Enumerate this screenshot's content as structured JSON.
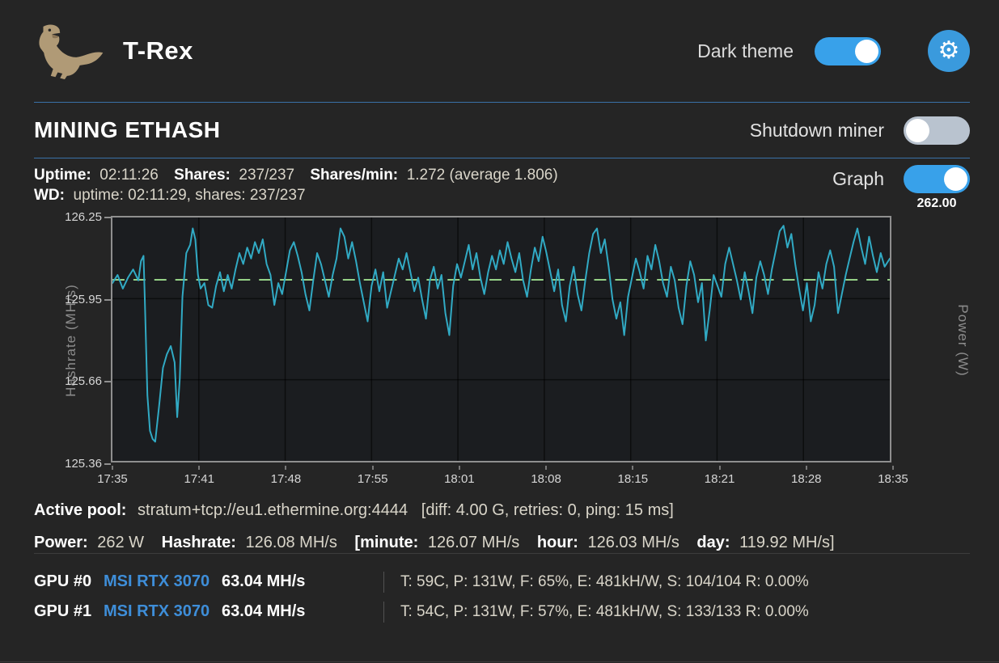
{
  "header": {
    "title": "T-Rex",
    "dark_theme_label": "Dark theme",
    "dark_theme_on": true,
    "gear_glyph": "⚙"
  },
  "section": {
    "title": "MINING ETHASH",
    "shutdown_label": "Shutdown miner",
    "shutdown_on": false,
    "graph_label": "Graph",
    "graph_on": true,
    "graph_tooltip": "262.00"
  },
  "stats": {
    "uptime_label": "Uptime:",
    "uptime": "02:11:26",
    "shares_label": "Shares:",
    "shares": "237/237",
    "shares_min_label": "Shares/min:",
    "shares_min": "1.272 (average 1.806)",
    "wd_label": "WD:",
    "wd": "uptime: 02:11:29, shares: 237/237"
  },
  "pool": {
    "label": "Active pool:",
    "url": "stratum+tcp://eu1.ethermine.org:4444",
    "details": "[diff: 4.00 G, retries: 0, ping: 15 ms]"
  },
  "power": {
    "power_label": "Power:",
    "power": "262 W",
    "hashrate_label": "Hashrate:",
    "hashrate": "126.08 MH/s",
    "minute_label": "[minute:",
    "minute": "126.07 MH/s",
    "hour_label": "hour:",
    "hour": "126.03 MH/s",
    "day_label": "day:",
    "day": "119.92 MH/s]"
  },
  "gpus": [
    {
      "id": "GPU #0",
      "model": "MSI RTX 3070",
      "hashrate": "63.04 MH/s",
      "stats": "T: 59C, P: 131W, F: 65%, E: 481kH/W, S: 104/104 R: 0.00%"
    },
    {
      "id": "GPU #1",
      "model": "MSI RTX 3070",
      "hashrate": "63.04 MH/s",
      "stats": "T: 54C, P: 131W, F: 57%, E: 481kH/W, S: 133/133 R: 0.00%"
    }
  ],
  "colors": {
    "accent_blue": "#38a1ea",
    "gpu_link_blue": "#3e8ed9",
    "hashrate_teal": "#31aac4",
    "power_green": "#9fdf8f",
    "divider_blue": "#3a71a8",
    "background": "#252525"
  },
  "chart_data": {
    "type": "line",
    "title": "",
    "ylabel_left": "Hashrate (MH/s)",
    "ylabel_right": "Power (W)",
    "y_ticks": [
      126.25,
      125.95,
      125.66,
      125.36
    ],
    "ylim": [
      125.36,
      126.25
    ],
    "x_ticks": [
      "17:35",
      "17:41",
      "17:48",
      "17:55",
      "18:01",
      "18:08",
      "18:15",
      "18:21",
      "18:28",
      "18:35"
    ],
    "x_range_minutes": [
      0,
      60
    ],
    "grid": true,
    "legend": false,
    "tooltip_value": "262.00",
    "series": [
      {
        "name": "Hashrate",
        "unit": "MH/s",
        "color": "#31aac4",
        "style": "solid",
        "points": [
          [
            0,
            126.01
          ],
          [
            0.4,
            126.04
          ],
          [
            0.8,
            125.99
          ],
          [
            1.2,
            126.03
          ],
          [
            1.6,
            126.06
          ],
          [
            2.0,
            126.02
          ],
          [
            2.2,
            126.09
          ],
          [
            2.4,
            126.11
          ],
          [
            2.5,
            125.95
          ],
          [
            2.7,
            125.6
          ],
          [
            2.9,
            125.47
          ],
          [
            3.1,
            125.44
          ],
          [
            3.3,
            125.43
          ],
          [
            3.6,
            125.56
          ],
          [
            3.9,
            125.7
          ],
          [
            4.2,
            125.75
          ],
          [
            4.5,
            125.78
          ],
          [
            4.8,
            125.72
          ],
          [
            5.0,
            125.52
          ],
          [
            5.2,
            125.66
          ],
          [
            5.4,
            125.96
          ],
          [
            5.7,
            126.12
          ],
          [
            6.0,
            126.15
          ],
          [
            6.2,
            126.21
          ],
          [
            6.4,
            126.17
          ],
          [
            6.6,
            126.04
          ],
          [
            6.8,
            125.99
          ],
          [
            7.1,
            126.01
          ],
          [
            7.4,
            125.93
          ],
          [
            7.7,
            125.92
          ],
          [
            8.0,
            126.0
          ],
          [
            8.3,
            126.05
          ],
          [
            8.6,
            125.98
          ],
          [
            8.9,
            126.04
          ],
          [
            9.2,
            125.99
          ],
          [
            9.5,
            126.06
          ],
          [
            9.8,
            126.12
          ],
          [
            10.1,
            126.08
          ],
          [
            10.4,
            126.14
          ],
          [
            10.7,
            126.1
          ],
          [
            11.0,
            126.16
          ],
          [
            11.3,
            126.12
          ],
          [
            11.6,
            126.17
          ],
          [
            11.9,
            126.08
          ],
          [
            12.2,
            126.04
          ],
          [
            12.5,
            125.93
          ],
          [
            12.8,
            126.01
          ],
          [
            13.1,
            125.97
          ],
          [
            13.4,
            126.05
          ],
          [
            13.7,
            126.13
          ],
          [
            14.0,
            126.16
          ],
          [
            14.3,
            126.11
          ],
          [
            14.6,
            126.05
          ],
          [
            14.9,
            125.97
          ],
          [
            15.2,
            125.91
          ],
          [
            15.5,
            126.02
          ],
          [
            15.8,
            126.12
          ],
          [
            16.1,
            126.08
          ],
          [
            16.4,
            126.02
          ],
          [
            16.7,
            125.96
          ],
          [
            17.0,
            126.04
          ],
          [
            17.3,
            126.1
          ],
          [
            17.6,
            126.21
          ],
          [
            17.9,
            126.18
          ],
          [
            18.2,
            126.1
          ],
          [
            18.5,
            126.16
          ],
          [
            18.8,
            126.09
          ],
          [
            19.1,
            126.01
          ],
          [
            19.4,
            125.94
          ],
          [
            19.7,
            125.87
          ],
          [
            20.0,
            126.0
          ],
          [
            20.3,
            126.06
          ],
          [
            20.6,
            125.98
          ],
          [
            20.9,
            126.05
          ],
          [
            21.2,
            125.92
          ],
          [
            21.5,
            125.98
          ],
          [
            21.8,
            126.04
          ],
          [
            22.1,
            126.1
          ],
          [
            22.4,
            126.06
          ],
          [
            22.7,
            126.12
          ],
          [
            23.0,
            126.05
          ],
          [
            23.3,
            125.98
          ],
          [
            23.6,
            126.03
          ],
          [
            23.9,
            125.95
          ],
          [
            24.2,
            125.88
          ],
          [
            24.5,
            126.02
          ],
          [
            24.8,
            126.07
          ],
          [
            25.1,
            125.99
          ],
          [
            25.4,
            126.04
          ],
          [
            25.7,
            125.9
          ],
          [
            26.0,
            125.82
          ],
          [
            26.3,
            126.0
          ],
          [
            26.6,
            126.08
          ],
          [
            26.9,
            126.03
          ],
          [
            27.2,
            126.09
          ],
          [
            27.5,
            126.15
          ],
          [
            27.8,
            126.06
          ],
          [
            28.1,
            126.12
          ],
          [
            28.4,
            126.03
          ],
          [
            28.7,
            125.97
          ],
          [
            29.0,
            126.05
          ],
          [
            29.3,
            126.11
          ],
          [
            29.6,
            126.06
          ],
          [
            29.9,
            126.13
          ],
          [
            30.2,
            126.08
          ],
          [
            30.5,
            126.16
          ],
          [
            30.8,
            126.1
          ],
          [
            31.1,
            126.05
          ],
          [
            31.4,
            126.12
          ],
          [
            31.7,
            126.02
          ],
          [
            32.0,
            125.96
          ],
          [
            32.3,
            126.06
          ],
          [
            32.6,
            126.14
          ],
          [
            32.9,
            126.09
          ],
          [
            33.2,
            126.18
          ],
          [
            33.5,
            126.12
          ],
          [
            33.8,
            126.05
          ],
          [
            34.1,
            125.98
          ],
          [
            34.4,
            126.06
          ],
          [
            34.7,
            125.93
          ],
          [
            35.0,
            125.87
          ],
          [
            35.3,
            126.0
          ],
          [
            35.6,
            126.07
          ],
          [
            35.9,
            125.97
          ],
          [
            36.2,
            125.91
          ],
          [
            36.5,
            126.02
          ],
          [
            36.8,
            126.12
          ],
          [
            37.1,
            126.19
          ],
          [
            37.4,
            126.21
          ],
          [
            37.7,
            126.12
          ],
          [
            38.0,
            126.17
          ],
          [
            38.3,
            126.07
          ],
          [
            38.6,
            125.95
          ],
          [
            38.9,
            125.88
          ],
          [
            39.2,
            125.94
          ],
          [
            39.5,
            125.82
          ],
          [
            39.8,
            125.96
          ],
          [
            40.1,
            126.03
          ],
          [
            40.4,
            126.1
          ],
          [
            40.7,
            126.05
          ],
          [
            41.0,
            125.99
          ],
          [
            41.3,
            126.11
          ],
          [
            41.6,
            126.06
          ],
          [
            41.9,
            126.15
          ],
          [
            42.2,
            126.09
          ],
          [
            42.5,
            126.01
          ],
          [
            42.8,
            125.96
          ],
          [
            43.1,
            126.07
          ],
          [
            43.4,
            126.02
          ],
          [
            43.7,
            125.92
          ],
          [
            44.0,
            125.86
          ],
          [
            44.3,
            126.0
          ],
          [
            44.6,
            126.09
          ],
          [
            44.9,
            126.04
          ],
          [
            45.2,
            125.94
          ],
          [
            45.5,
            126.01
          ],
          [
            45.8,
            125.8
          ],
          [
            46.1,
            125.91
          ],
          [
            46.4,
            126.04
          ],
          [
            46.7,
            126.0
          ],
          [
            47.0,
            125.96
          ],
          [
            47.3,
            126.08
          ],
          [
            47.6,
            126.14
          ],
          [
            47.9,
            126.08
          ],
          [
            48.2,
            126.02
          ],
          [
            48.5,
            125.95
          ],
          [
            48.8,
            126.05
          ],
          [
            49.1,
            125.98
          ],
          [
            49.4,
            125.9
          ],
          [
            49.7,
            126.03
          ],
          [
            50.0,
            126.09
          ],
          [
            50.3,
            126.04
          ],
          [
            50.6,
            125.97
          ],
          [
            50.9,
            126.06
          ],
          [
            51.2,
            126.13
          ],
          [
            51.5,
            126.2
          ],
          [
            51.8,
            126.22
          ],
          [
            52.1,
            126.14
          ],
          [
            52.4,
            126.19
          ],
          [
            52.7,
            126.08
          ],
          [
            53.0,
            125.99
          ],
          [
            53.3,
            125.91
          ],
          [
            53.6,
            126.01
          ],
          [
            53.9,
            125.87
          ],
          [
            54.2,
            125.93
          ],
          [
            54.5,
            126.05
          ],
          [
            54.8,
            125.99
          ],
          [
            55.1,
            126.08
          ],
          [
            55.4,
            126.13
          ],
          [
            55.7,
            126.07
          ],
          [
            56.0,
            125.9
          ],
          [
            56.3,
            125.97
          ],
          [
            56.6,
            126.04
          ],
          [
            56.9,
            126.1
          ],
          [
            57.2,
            126.16
          ],
          [
            57.5,
            126.21
          ],
          [
            57.8,
            126.14
          ],
          [
            58.1,
            126.08
          ],
          [
            58.4,
            126.18
          ],
          [
            58.7,
            126.11
          ],
          [
            59.0,
            126.05
          ],
          [
            59.3,
            126.12
          ],
          [
            59.6,
            126.07
          ],
          [
            60.0,
            126.1
          ]
        ]
      },
      {
        "name": "Power",
        "unit": "W",
        "color": "#9fdf8f",
        "style": "dashed",
        "constant_value": 262,
        "y_frac": 0.256
      }
    ]
  }
}
